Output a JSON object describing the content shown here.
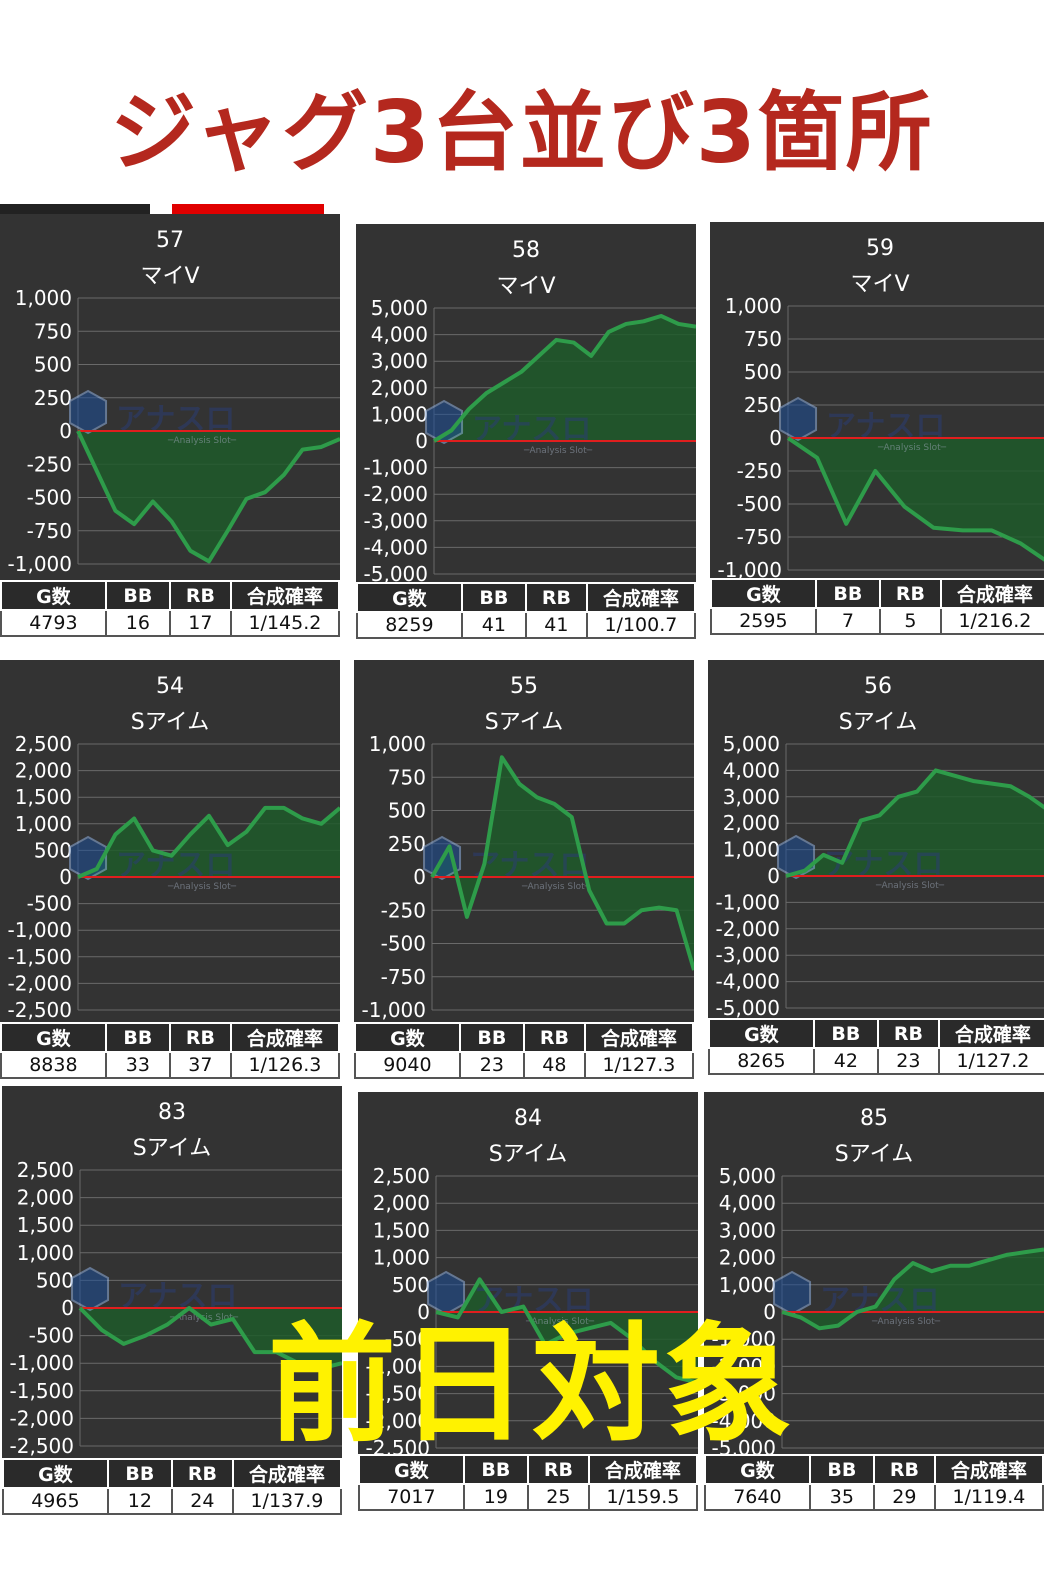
{
  "headline": "ジャグ3台並び3箇所",
  "overlay_label": "前日対象",
  "watermark": {
    "logo_text": "アナスロ",
    "sub_text": "─Analysis Slot─"
  },
  "colors": {
    "headline": "#b4281e",
    "overlay": "#fff200",
    "panel_bg": "#333333",
    "line": "#2e9c4a",
    "area": "#1f5a2a",
    "zero_line": "#e01e1e",
    "grid": "#6a6a6a"
  },
  "table_headers": [
    "G数",
    "BB",
    "RB",
    "合成確率"
  ],
  "chart_data": [
    {
      "type": "area",
      "number": "57",
      "machine": "マイV",
      "ylim": [
        -1000,
        1000
      ],
      "yticks": [
        "1,000",
        "750",
        "500",
        "250",
        "0",
        "-250",
        "-500",
        "-750",
        "-1,000"
      ],
      "x": [
        0,
        1,
        2,
        3,
        4,
        5,
        6,
        7,
        8,
        9,
        10,
        11,
        12,
        13,
        14
      ],
      "values": [
        0,
        -300,
        -600,
        -700,
        -530,
        -680,
        -900,
        -980,
        -750,
        -510,
        -460,
        -330,
        -140,
        -120,
        -60
      ],
      "stats": {
        "games": "4793",
        "bb": "16",
        "rb": "17",
        "prob": "1/145.2"
      }
    },
    {
      "type": "area",
      "number": "58",
      "machine": "マイV",
      "ylim": [
        -5000,
        5000
      ],
      "yticks": [
        "5,000",
        "4,000",
        "3,000",
        "2,000",
        "1,000",
        "0",
        "-1,000",
        "-2,000",
        "-3,000",
        "-4,000",
        "-5,000"
      ],
      "x": [
        0,
        1,
        2,
        3,
        4,
        5,
        6,
        7,
        8,
        9,
        10,
        11,
        12,
        13,
        14,
        15
      ],
      "values": [
        0,
        400,
        1200,
        1800,
        2200,
        2600,
        3200,
        3800,
        3700,
        3200,
        4100,
        4400,
        4500,
        4700,
        4400,
        4300
      ],
      "stats": {
        "games": "8259",
        "bb": "41",
        "rb": "41",
        "prob": "1/100.7"
      }
    },
    {
      "type": "area",
      "number": "59",
      "machine": "マイV",
      "ylim": [
        -1000,
        1000
      ],
      "yticks": [
        "1,000",
        "750",
        "500",
        "250",
        "0",
        "-250",
        "-500",
        "-750",
        "-1,000"
      ],
      "x": [
        0,
        1,
        2,
        3,
        4,
        5,
        6,
        7,
        8,
        9
      ],
      "values": [
        0,
        -150,
        -650,
        -250,
        -520,
        -680,
        -700,
        -700,
        -800,
        -950
      ],
      "stats": {
        "games": "2595",
        "bb": "7",
        "rb": "5",
        "prob": "1/216.2"
      }
    },
    {
      "type": "area",
      "number": "54",
      "machine": "Sアイム",
      "ylim": [
        -2500,
        2500
      ],
      "yticks": [
        "2,500",
        "2,000",
        "1,500",
        "1,000",
        "500",
        "0",
        "-500",
        "-1,000",
        "-1,500",
        "-2,000",
        "-2,500"
      ],
      "x": [
        0,
        1,
        2,
        3,
        4,
        5,
        6,
        7,
        8,
        9,
        10,
        11,
        12,
        13,
        14
      ],
      "values": [
        0,
        150,
        800,
        1100,
        500,
        400,
        800,
        1150,
        600,
        850,
        1300,
        1300,
        1100,
        1000,
        1300
      ],
      "stats": {
        "games": "8838",
        "bb": "33",
        "rb": "37",
        "prob": "1/126.3"
      }
    },
    {
      "type": "area",
      "number": "55",
      "machine": "Sアイム",
      "ylim": [
        -1000,
        1000
      ],
      "yticks": [
        "1,000",
        "750",
        "500",
        "250",
        "0",
        "-250",
        "-500",
        "-750",
        "-1,000"
      ],
      "x": [
        0,
        1,
        2,
        3,
        4,
        5,
        6,
        7,
        8,
        9,
        10,
        11,
        12,
        13,
        14,
        15
      ],
      "values": [
        0,
        230,
        -300,
        100,
        900,
        700,
        600,
        550,
        450,
        -100,
        -350,
        -350,
        -250,
        -230,
        -250,
        -700
      ],
      "stats": {
        "games": "9040",
        "bb": "23",
        "rb": "48",
        "prob": "1/127.3"
      }
    },
    {
      "type": "area",
      "number": "56",
      "machine": "Sアイム",
      "ylim": [
        -5000,
        5000
      ],
      "yticks": [
        "5,000",
        "4,000",
        "3,000",
        "2,000",
        "1,000",
        "0",
        "-1,000",
        "-2,000",
        "-3,000",
        "-4,000",
        "-5,000"
      ],
      "x": [
        0,
        1,
        2,
        3,
        4,
        5,
        6,
        7,
        8,
        9,
        10,
        11,
        12,
        13,
        14
      ],
      "values": [
        0,
        200,
        800,
        500,
        2100,
        2300,
        3000,
        3200,
        4000,
        3800,
        3600,
        3500,
        3400,
        3000,
        2500
      ],
      "stats": {
        "games": "8265",
        "bb": "42",
        "rb": "23",
        "prob": "1/127.2"
      }
    },
    {
      "type": "area",
      "number": "83",
      "machine": "Sアイム",
      "ylim": [
        -2500,
        2500
      ],
      "yticks": [
        "2,500",
        "2,000",
        "1,500",
        "1,000",
        "500",
        "0",
        "-500",
        "-1,000",
        "-1,500",
        "-2,000",
        "-2,500"
      ],
      "x": [
        0,
        1,
        2,
        3,
        4,
        5,
        6,
        7,
        8,
        9,
        10,
        11,
        12
      ],
      "values": [
        0,
        -400,
        -650,
        -500,
        -300,
        0,
        -300,
        -200,
        -800,
        -800,
        -1000,
        -1100,
        -1000
      ],
      "stats": {
        "games": "4965",
        "bb": "12",
        "rb": "24",
        "prob": "1/137.9"
      }
    },
    {
      "type": "area",
      "number": "84",
      "machine": "Sアイム",
      "ylim": [
        -2500,
        2500
      ],
      "yticks": [
        "2,500",
        "2,000",
        "1,500",
        "1,000",
        "500",
        "0",
        "-500",
        "-1,000",
        "-1,500",
        "-2,000",
        "-2,500"
      ],
      "x": [
        0,
        1,
        2,
        3,
        4,
        5,
        6,
        7,
        8,
        9,
        10,
        11,
        12
      ],
      "values": [
        0,
        -100,
        600,
        0,
        100,
        -600,
        -400,
        -300,
        -200,
        -500,
        -900,
        -1200,
        -1300
      ],
      "stats": {
        "games": "7017",
        "bb": "19",
        "rb": "25",
        "prob": "1/159.5"
      }
    },
    {
      "type": "area",
      "number": "85",
      "machine": "Sアイム",
      "ylim": [
        -5000,
        5000
      ],
      "yticks": [
        "5,000",
        "4,000",
        "3,000",
        "2,000",
        "1,000",
        "0",
        "-1,000",
        "-2,000",
        "-3,000",
        "-4,000",
        "-5,000"
      ],
      "x": [
        0,
        1,
        2,
        3,
        4,
        5,
        6,
        7,
        8,
        9,
        10,
        11,
        12,
        13,
        14
      ],
      "values": [
        0,
        -200,
        -600,
        -500,
        0,
        200,
        1200,
        1800,
        1500,
        1700,
        1700,
        1900,
        2100,
        2200,
        2300
      ],
      "stats": {
        "games": "7640",
        "bb": "35",
        "rb": "29",
        "prob": "1/119.4"
      }
    }
  ]
}
